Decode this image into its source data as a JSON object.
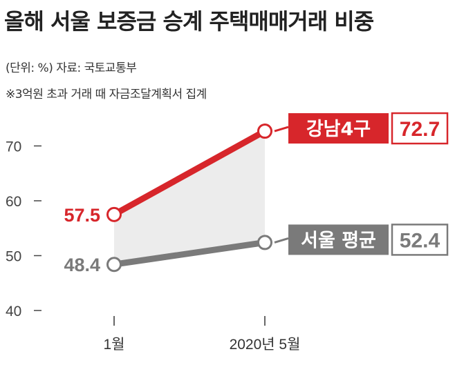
{
  "header": {
    "title": "올해 서울 보증금 승계 주택매매거래 비중",
    "unit_source": "(단위: %) 자료: 국토교통부",
    "note": "※3억원 초과 거래 때 자금조달계획서 집계"
  },
  "chart_data": {
    "type": "line",
    "x": [
      "1월",
      "2020년 5월"
    ],
    "ylim": [
      40,
      75
    ],
    "yticks": [
      40,
      50,
      60,
      70
    ],
    "grid": false,
    "series": [
      {
        "name": "강남4구",
        "values": [
          57.5,
          72.7
        ],
        "color": "#d7262b",
        "value_labels": [
          "57.5",
          "72.7"
        ]
      },
      {
        "name": "서울 평균",
        "values": [
          48.4,
          52.4
        ],
        "color": "#7a7a7a",
        "value_labels": [
          "48.4",
          "52.4"
        ]
      }
    ],
    "fill_between_color": "#ececec",
    "legend_placement": "right"
  }
}
